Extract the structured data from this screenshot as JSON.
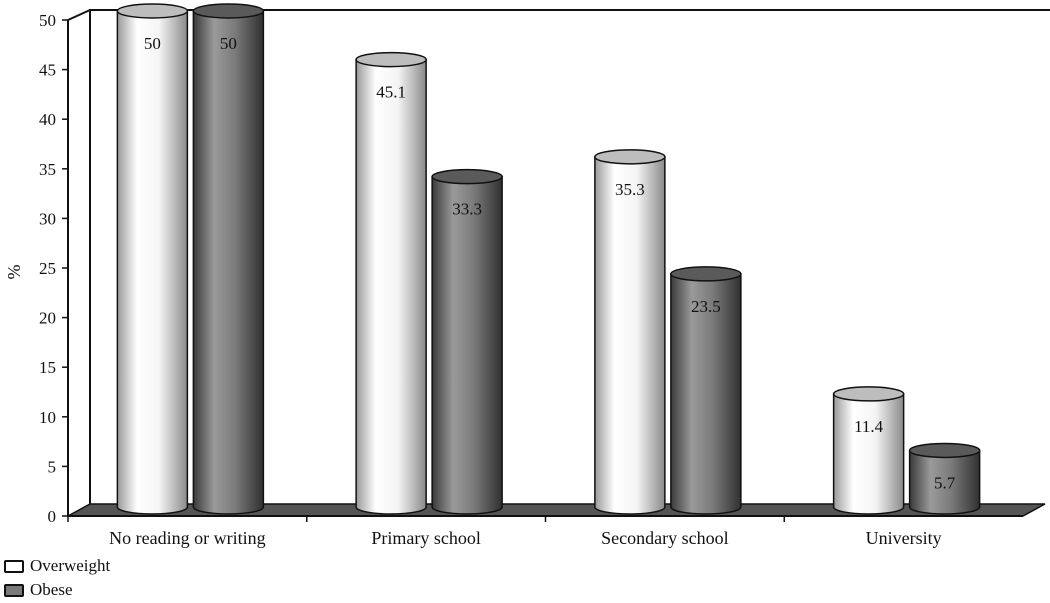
{
  "chart_data": {
    "type": "bar",
    "style": "3d-cylinder",
    "categories": [
      "No reading or writing",
      "Primary school",
      "Secondary school",
      "University"
    ],
    "series": [
      {
        "name": "Overweight",
        "values": [
          50,
          45.1,
          35.3,
          11.4
        ],
        "labels": [
          "50",
          "45.1",
          "35.3",
          "11.4"
        ],
        "color": "#ffffff"
      },
      {
        "name": "Obese",
        "values": [
          50,
          33.3,
          23.5,
          5.7
        ],
        "labels": [
          "50",
          "33.3",
          "23.5",
          "5.7"
        ],
        "color": "#7a7a7a"
      }
    ],
    "ylabel": "%",
    "xlabel": "",
    "ylim": [
      0,
      50
    ],
    "yticks": [
      0,
      5,
      10,
      15,
      20,
      25,
      30,
      35,
      40,
      45,
      50
    ],
    "ytick_labels": [
      "0",
      "5",
      "10",
      "15",
      "20",
      "25",
      "30",
      "35",
      "40",
      "45",
      "50"
    ],
    "floor_color": "#555555",
    "legend_placement": "bottom-left"
  }
}
